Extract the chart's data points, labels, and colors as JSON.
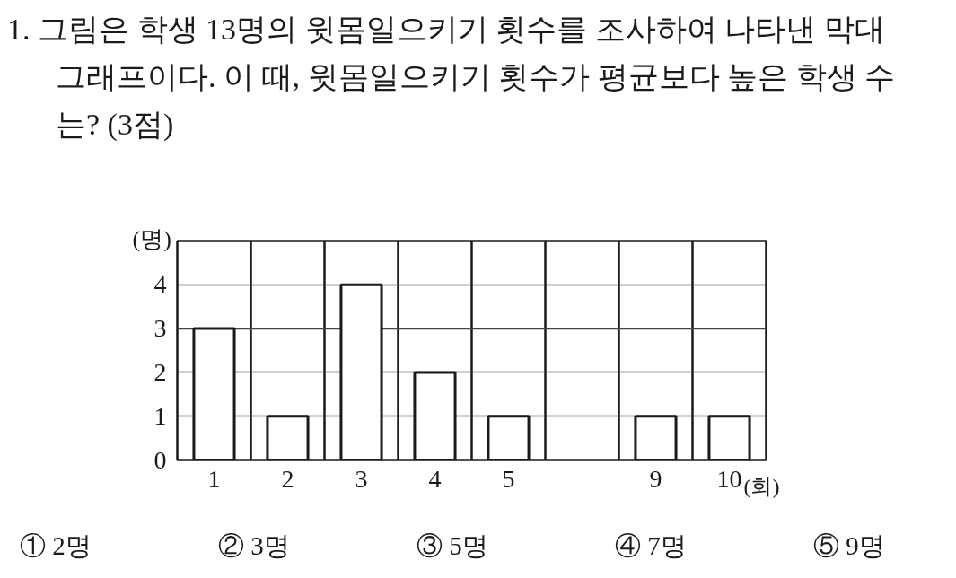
{
  "chart_data": {
    "type": "bar",
    "title": "1. 그림은 학생 13명의 윗몸일으키기 횟수를 조사하여 나타낸 막대 그래프이다. 이 때, 윗몸일으키기 횟수가 평균보다 높은 학생 수는? (3점)",
    "xlabel": "(회)",
    "ylabel": "(명)",
    "categories": [
      "1",
      "2",
      "3",
      "4",
      "5",
      null,
      "9",
      "10"
    ],
    "values": [
      3,
      1,
      4,
      2,
      1,
      null,
      1,
      1
    ],
    "color": "#ffffff",
    "ylim": [
      0,
      5
    ],
    "yticks": [
      0,
      1,
      2,
      3,
      4
    ],
    "grid": true,
    "annotations": [
      "① 2명",
      "② 3명",
      "③ 5명",
      "④ 7명",
      "⑤ 9명"
    ]
  }
}
